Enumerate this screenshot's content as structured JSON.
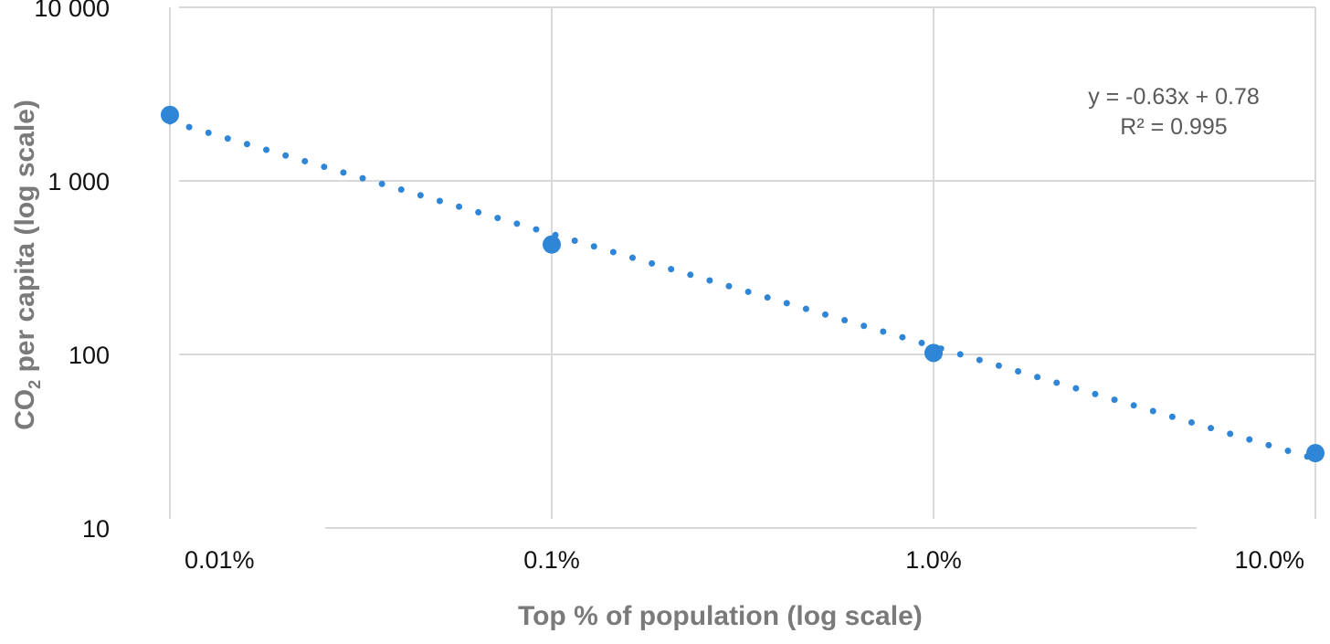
{
  "chart_data": {
    "type": "scatter",
    "xscale": "log",
    "yscale": "log",
    "xlim": [
      0.01,
      10
    ],
    "ylim": [
      10,
      10000
    ],
    "x_ticks": [
      0.01,
      0.1,
      1,
      10
    ],
    "x_tick_labels": [
      "0.01%",
      "0.1%",
      "1.0%",
      "10.0%"
    ],
    "y_ticks": [
      10,
      100,
      1000,
      10000
    ],
    "y_tick_labels": [
      "10",
      "100",
      "1 000",
      "10 000"
    ],
    "xlabel": "Top % of population (log scale)",
    "ylabel_main": "CO",
    "ylabel_sub": "2",
    "ylabel_rest": " per capita (log scale)",
    "grid": true,
    "colors": {
      "points": "#2f86d6",
      "trendline": "#2f86d6",
      "grid": "#d9d9d9",
      "tick_text": "#111111",
      "axis_title": "#7a7a7a",
      "annotation": "#5a5a5a"
    },
    "series": [
      {
        "x": [
          0.01,
          0.1,
          1,
          10
        ],
        "y": [
          2400,
          430,
          102,
          27
        ]
      }
    ],
    "trendline": {
      "type": "dotted",
      "x_range": [
        0.01,
        10
      ],
      "y_range": [
        2200,
        25
      ]
    },
    "annotation": {
      "equation": "y = -0.63x + 0.78",
      "r_squared": "R² = 0.995"
    }
  }
}
